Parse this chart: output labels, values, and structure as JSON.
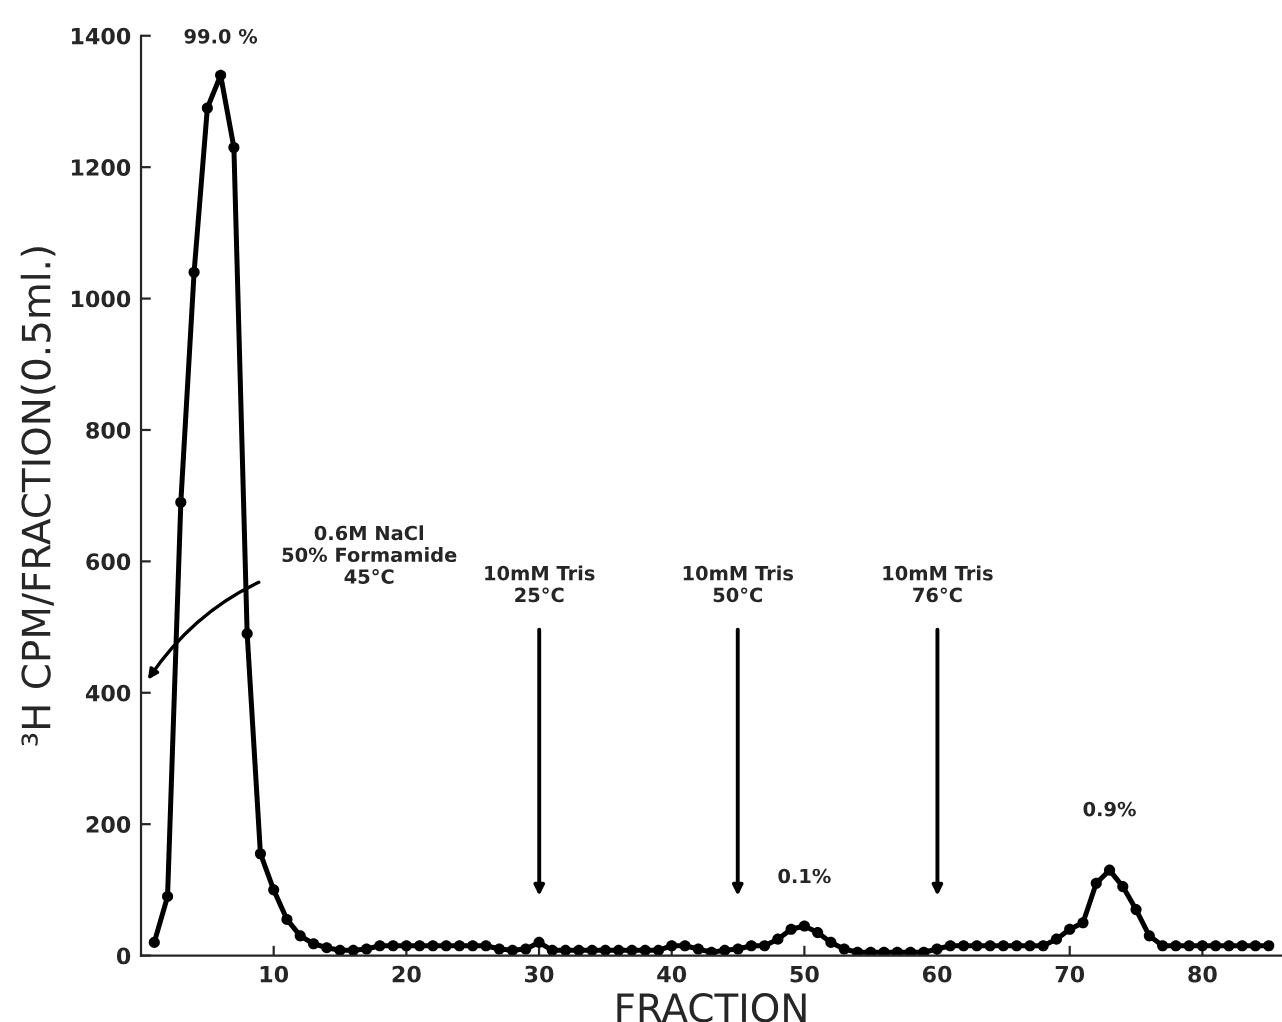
{
  "chart_data": {
    "type": "line",
    "xlabel": "FRACTION",
    "ylabel": "³H CPM/FRACTION(0.5ml.)",
    "x": [
      1,
      2,
      3,
      4,
      5,
      6,
      7,
      8,
      9,
      10,
      11,
      12,
      13,
      14,
      15,
      16,
      17,
      18,
      19,
      20,
      21,
      22,
      23,
      24,
      25,
      26,
      27,
      28,
      29,
      30,
      31,
      32,
      33,
      34,
      35,
      36,
      37,
      38,
      39,
      40,
      41,
      42,
      43,
      44,
      45,
      46,
      47,
      48,
      49,
      50,
      51,
      52,
      53,
      54,
      55,
      56,
      57,
      58,
      59,
      60,
      61,
      62,
      63,
      64,
      65,
      66,
      67,
      68,
      69,
      70,
      71,
      72,
      73,
      74,
      75,
      76,
      77,
      78,
      79,
      80,
      81,
      82,
      83,
      84,
      85
    ],
    "series": [
      {
        "color": "#000000",
        "values": [
          20,
          90,
          690,
          1040,
          1290,
          1340,
          1230,
          490,
          155,
          100,
          55,
          30,
          18,
          12,
          8,
          8,
          10,
          15,
          15,
          15,
          15,
          15,
          15,
          15,
          15,
          15,
          10,
          8,
          10,
          20,
          8,
          8,
          8,
          8,
          8,
          8,
          8,
          8,
          8,
          15,
          15,
          10,
          5,
          8,
          10,
          15,
          15,
          25,
          40,
          45,
          35,
          20,
          10,
          5,
          5,
          5,
          5,
          5,
          5,
          10,
          15,
          15,
          15,
          15,
          15,
          15,
          15,
          15,
          25,
          40,
          50,
          110,
          130,
          105,
          70,
          30,
          15,
          15,
          15,
          15,
          15,
          15,
          15,
          15,
          15
        ]
      }
    ],
    "xlim": [
      0,
      86
    ],
    "xticks": [
      10,
      20,
      30,
      40,
      50,
      60,
      70,
      80
    ],
    "ylim": [
      0,
      1400
    ],
    "yticks": [
      0,
      200,
      400,
      600,
      800,
      1000,
      1200,
      1400
    ],
    "marker": "circle",
    "line_style": "solid",
    "grid": false,
    "annotations": [
      {
        "text": "99.0 %",
        "x": 6,
        "y": 1340
      },
      {
        "text": "0.1%",
        "x": 50,
        "y": 45
      },
      {
        "text": "0.9%",
        "x": 73,
        "y": 130
      },
      "0.6M NaCl\n50% Formamide\n45°C",
      "10mM Tris\n25°C",
      "10mM Tris\n50°C",
      "10mM Tris\n76°C"
    ]
  }
}
